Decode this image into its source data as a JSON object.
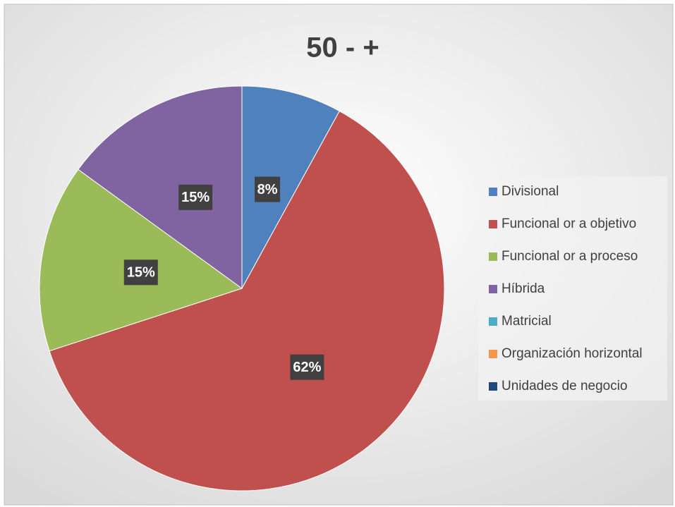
{
  "chart_data": {
    "type": "pie",
    "title": "50 - +",
    "categories": [
      "Divisional",
      "Funcional or a objetivo",
      "Funcional or a proceso",
      "Híbrida",
      "Matricial",
      "Organización horizontal",
      "Unidades de negocio"
    ],
    "values": [
      8,
      62,
      15,
      15,
      0,
      0,
      0
    ],
    "value_labels": [
      "8%",
      "62%",
      "15%",
      "15%",
      null,
      null,
      null
    ],
    "colors": [
      "#4f81bd",
      "#c0504d",
      "#9bbb59",
      "#8064a2",
      "#4bacc6",
      "#f79646",
      "#1f497d"
    ],
    "legend": "right"
  }
}
